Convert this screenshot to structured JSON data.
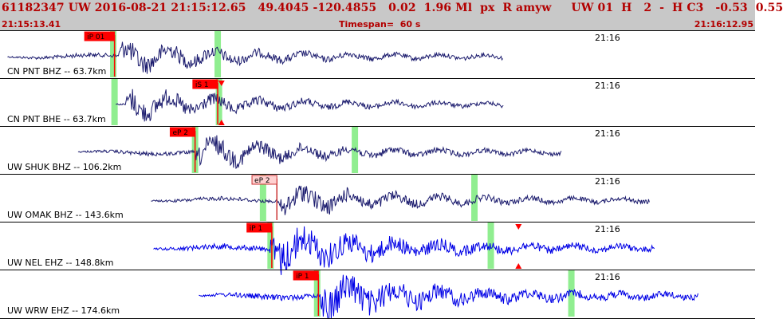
{
  "header": {
    "event_line": "61182347 UW 2016-08-21 21:15:12.65   49.4045 -120.4855   0.02  1.96 Ml  px  R amyw     UW 01  H   2  -  H C3   -0.53  0.55",
    "start_time": "21:15:13.41",
    "timespan": "Timespan=  60 s",
    "end_time": "21:16:12.95"
  },
  "colors": {
    "header_bg": "#c8c8c8",
    "header_text": "#b30000",
    "trace_dark": "#1c1c6e",
    "trace_blue": "#0000e6",
    "pick_red": "#ff0000",
    "pick_box_light": "#ffd0d0",
    "window_green": "#90ee90"
  },
  "traces": [
    {
      "station": "CN PNT BHZ -- 63.7km",
      "tick_label": "21:16",
      "color": "dark",
      "signal_start_s": 0.6,
      "signal_end_s": 40.0,
      "onset_s": 9.4,
      "pick": {
        "label": "iP 01",
        "time_s": 9.1,
        "style": "red"
      },
      "windows_s": [
        9.0,
        17.3
      ],
      "markers": []
    },
    {
      "station": "CN PNT BHE -- 63.7km",
      "tick_label": "21:16",
      "color": "dark",
      "signal_start_s": 9.2,
      "signal_end_s": 40.0,
      "onset_s": 10.0,
      "pick": {
        "label": "iS 1",
        "time_s": 17.3,
        "style": "red"
      },
      "windows_s": [
        9.1,
        17.4
      ],
      "markers": [
        {
          "type": "down",
          "time_s": 17.6
        },
        {
          "type": "up",
          "time_s": 17.6
        }
      ]
    },
    {
      "station": "UW SHUK BHZ -- 106.2km",
      "tick_label": "21:16",
      "color": "dark",
      "signal_start_s": 6.2,
      "signal_end_s": 44.6,
      "onset_s": 15.5,
      "pick": {
        "label": "eP 2",
        "time_s": 15.5,
        "style": "red"
      },
      "windows_s": [
        15.5,
        28.2
      ],
      "markers": []
    },
    {
      "station": "UW OMAK BHZ -- 143.6km",
      "tick_label": "21:16",
      "color": "dark",
      "signal_start_s": 12.0,
      "signal_end_s": 51.6,
      "onset_s": 22.1,
      "pick": {
        "label": "eP 2",
        "time_s": 22.0,
        "style": "light"
      },
      "windows_s": [
        20.9,
        37.7
      ],
      "markers": []
    },
    {
      "station": "UW NEL EHZ -- 148.8km",
      "tick_label": "21:16",
      "color": "blue",
      "signal_start_s": 12.2,
      "signal_end_s": 52.0,
      "onset_s": 21.4,
      "pick": {
        "label": "iP 1",
        "time_s": 21.6,
        "style": "red"
      },
      "windows_s": [
        21.5,
        39.0
      ],
      "markers": [
        {
          "type": "down",
          "time_s": 41.2
        },
        {
          "type": "up",
          "time_s": 41.2
        }
      ]
    },
    {
      "station": "UW WRW EHZ -- 174.6km",
      "tick_label": "21:16",
      "color": "blue",
      "signal_start_s": 15.8,
      "signal_end_s": 55.5,
      "onset_s": 25.4,
      "pick": {
        "label": "iP 1",
        "time_s": 25.3,
        "style": "red"
      },
      "windows_s": [
        25.2,
        45.4
      ],
      "markers": []
    }
  ]
}
